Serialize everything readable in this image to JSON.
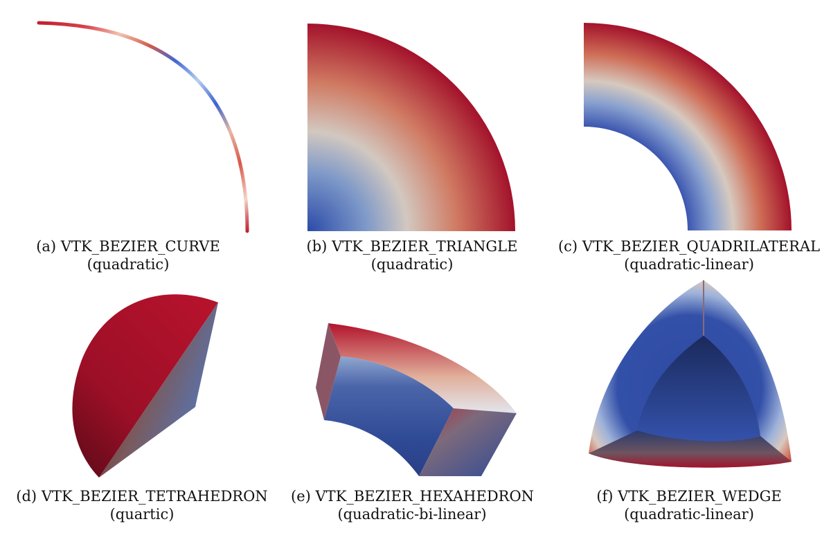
{
  "figure": {
    "panels": [
      {
        "id": "a",
        "label": "(a)",
        "cell_type": "VTK_BEZIER_CURVE",
        "order": "(quadratic)"
      },
      {
        "id": "b",
        "label": "(b)",
        "cell_type": "VTK_BEZIER_TRIANGLE",
        "order": "(quadratic)"
      },
      {
        "id": "c",
        "label": "(c)",
        "cell_type": "VTK_BEZIER_QUADRILATERAL",
        "order": "(quadratic-linear)"
      },
      {
        "id": "d",
        "label": "(d)",
        "cell_type": "VTK_BEZIER_TETRAHEDRON",
        "order": "(quartic)"
      },
      {
        "id": "e",
        "label": "(e)",
        "cell_type": "VTK_BEZIER_HEXAHEDRON",
        "order": "(quadratic-bi-linear)"
      },
      {
        "id": "f",
        "label": "(f)",
        "cell_type": "VTK_BEZIER_WEDGE",
        "order": "(quadratic-linear)"
      }
    ],
    "colormap": {
      "low": "#3b4cc0",
      "mid": "#dcdcdc",
      "high": "#b40426",
      "dark": "#1e2a66"
    }
  }
}
